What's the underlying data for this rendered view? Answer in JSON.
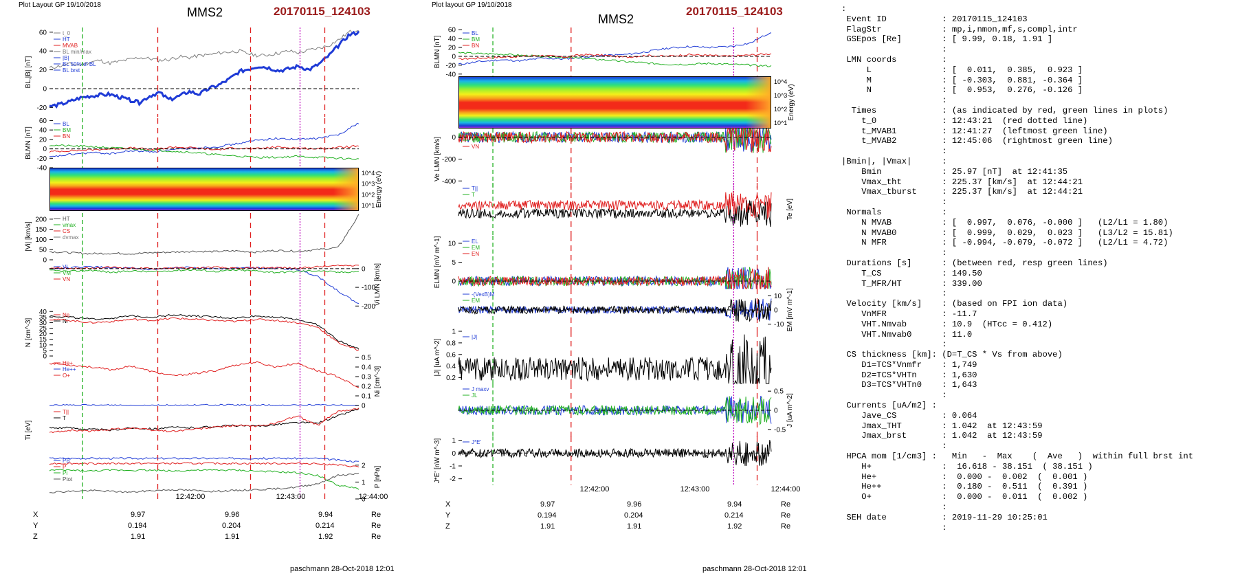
{
  "header": {
    "left_label": "Plot Layout GP 19/10/2018",
    "right_label": "Plot layout GP 19/10/2018",
    "spacecraft": "MMS2",
    "event_id": "20170115_124103"
  },
  "footer": {
    "left": "paschmann 28-Oct-2018 12:01",
    "right": "paschmann 28-Oct-2018 12:01"
  },
  "time_axis": {
    "ticks": [
      "12:42:00",
      "12:43:00",
      "12:44:00"
    ],
    "coords": {
      "X": [
        "9.97",
        "9.96",
        "9.94"
      ],
      "Y": [
        "0.194",
        "0.204",
        "0.214"
      ],
      "Z": [
        "1.91",
        "1.91",
        "1.92"
      ]
    },
    "unit": "Re"
  },
  "chart_data": [
    {
      "type": "line",
      "panel": "left-1",
      "ylabel": "BL,|B| [nT]",
      "ylim": [
        -30,
        65
      ],
      "yticks": [
        -20,
        0,
        20,
        40,
        60
      ],
      "legend": [
        "t_0",
        "HT",
        "MVAB",
        "BL min/max",
        "|B|",
        "BL 50% of BL",
        "BL brst"
      ],
      "series": [
        {
          "name": "|B|",
          "color": "#7f7f7f",
          "values": [
            22,
            24,
            26,
            25,
            28,
            30,
            27,
            29,
            31,
            33,
            32,
            30,
            31,
            34,
            33,
            35,
            36,
            38,
            39,
            40,
            37,
            35,
            36,
            38,
            40,
            38,
            41,
            43,
            46,
            52,
            60,
            63
          ]
        },
        {
          "name": "BL",
          "color": "#1f3bd6",
          "values": [
            -19,
            -17,
            -14,
            -10,
            -8,
            -7,
            -6,
            -9,
            -12,
            -15,
            -8,
            -4,
            -12,
            -8,
            -3,
            -6,
            0,
            4,
            10,
            18,
            21,
            24,
            22,
            19,
            21,
            24,
            20,
            26,
            35,
            46,
            57,
            60
          ]
        }
      ]
    },
    {
      "type": "line",
      "panel": "left-2",
      "ylabel": "BLMN [nT]",
      "ylim": [
        -40,
        65
      ],
      "yticks": [
        -40,
        -20,
        0,
        20,
        40,
        60
      ],
      "legend": [
        "BL",
        "BM",
        "BN"
      ],
      "series": [
        {
          "name": "BL",
          "color": "#1f3bd6",
          "values": [
            -18,
            -12,
            -8,
            -10,
            -4,
            -6,
            -2,
            2,
            4,
            10,
            18,
            22,
            20,
            22,
            30,
            55
          ]
        },
        {
          "name": "BM",
          "color": "#22b022",
          "values": [
            8,
            6,
            5,
            2,
            0,
            -2,
            -5,
            -8,
            -12,
            -15,
            -18,
            -18,
            -16,
            -18,
            -20,
            -22
          ]
        },
        {
          "name": "BN",
          "color": "#e02020",
          "values": [
            -6,
            -4,
            -2,
            0,
            2,
            -2,
            4,
            2,
            -2,
            2,
            0,
            4,
            2,
            0,
            3,
            6
          ]
        }
      ]
    },
    {
      "type": "heatmap",
      "panel": "left-3",
      "ylabel": "Energy (eV)",
      "yticks": [
        "10^1",
        "10^2",
        "10^3",
        "10^4"
      ]
    },
    {
      "type": "line",
      "panel": "left-4",
      "ylabel": "|Vi| [km/s]",
      "ylim": [
        0,
        230
      ],
      "yticks": [
        0,
        50,
        100,
        150,
        200
      ],
      "legend": [
        "HT",
        "vmax",
        "CS",
        "dvmax"
      ],
      "series": [
        {
          "name": "|Vi|",
          "color": "#555555",
          "values": [
            40,
            35,
            30,
            32,
            30,
            35,
            38,
            42,
            40,
            44,
            38,
            46,
            42,
            50,
            60,
            220
          ]
        }
      ]
    },
    {
      "type": "line",
      "panel": "left-5",
      "ylabel": "Vi LMN [km/s]",
      "ylim": [
        -210,
        40
      ],
      "yticks": [
        0,
        -100,
        -200
      ],
      "legend": [
        "VL",
        "VM",
        "VN"
      ],
      "series": [
        {
          "name": "VL",
          "color": "#1f3bd6",
          "values": [
            0,
            5,
            10,
            4,
            0,
            -5,
            2,
            8,
            0,
            4,
            6,
            2,
            -4,
            -40,
            -120,
            -190
          ]
        },
        {
          "name": "VM",
          "color": "#22b022",
          "values": [
            -10,
            -15,
            -8,
            -20,
            -12,
            -18,
            -10,
            -5,
            -15,
            -8,
            -12,
            -20,
            -15,
            -10,
            -20,
            -15
          ]
        },
        {
          "name": "VN",
          "color": "#e02020",
          "values": [
            5,
            2,
            0,
            8,
            3,
            0,
            5,
            2,
            8,
            0,
            4,
            6,
            2,
            10,
            15,
            20
          ]
        }
      ]
    },
    {
      "type": "line",
      "panel": "left-6",
      "ylabel": "N [cm^-3]",
      "ylim": [
        0,
        42
      ],
      "yticks": [
        0,
        5,
        10,
        15,
        20,
        25,
        30,
        35,
        40
      ],
      "legend": [
        "Ne",
        "Ni"
      ],
      "series": [
        {
          "name": "Ne",
          "color": "#e02020",
          "values": [
            33,
            32,
            30,
            31,
            33,
            32,
            34,
            33,
            32,
            31,
            33,
            32,
            30,
            26,
            12,
            5
          ]
        },
        {
          "name": "Ni",
          "color": "#000000",
          "values": [
            36,
            35,
            33,
            34,
            36,
            35,
            37,
            36,
            35,
            34,
            36,
            35,
            33,
            28,
            14,
            6
          ]
        }
      ]
    },
    {
      "type": "line",
      "panel": "left-7",
      "ylabel": "Ni [cm^-3]",
      "ylim": [
        0,
        0.5
      ],
      "yticks": [
        0,
        0.1,
        0.2,
        0.3,
        0.4,
        0.5
      ],
      "legend": [
        "He+",
        "He++",
        "O+"
      ],
      "series": [
        {
          "name": "He++",
          "color": "#e02020",
          "values": [
            0.44,
            0.42,
            0.4,
            0.37,
            0.41,
            0.35,
            0.31,
            0.33,
            0.36,
            0.42,
            0.45,
            0.4,
            0.44,
            0.36,
            0.3,
            0.18
          ]
        },
        {
          "name": "O+",
          "color": "#1f3bd6",
          "values": [
            0.002,
            0.003,
            0.001,
            0.004,
            0.002,
            0.003,
            0.001,
            0.002,
            0.004,
            0.002,
            0.003,
            0.001,
            0.002,
            0.003,
            0.002,
            0.001
          ]
        }
      ]
    },
    {
      "type": "line",
      "panel": "left-8",
      "ylabel": "Ti [eV]",
      "legend": [
        "T||",
        "T"
      ],
      "series": [
        {
          "name": "T||",
          "color": "#e02020",
          "values": [
            0.45,
            0.5,
            0.48,
            0.52,
            0.55,
            0.5,
            0.48,
            0.52,
            0.56,
            0.6,
            0.58,
            0.65,
            0.8,
            0.6,
            0.9,
            0.95
          ]
        },
        {
          "name": "T",
          "color": "#000000",
          "values": [
            0.55,
            0.55,
            0.52,
            0.5,
            0.55,
            0.53,
            0.56,
            0.55,
            0.58,
            0.6,
            0.58,
            0.62,
            0.66,
            0.65,
            0.8,
            0.95
          ]
        }
      ]
    },
    {
      "type": "line",
      "panel": "left-9",
      "ylabel": "P [nPa]",
      "ylim": [
        0,
        2.6
      ],
      "yticks": [
        0,
        1,
        2
      ],
      "legend": [
        "PB",
        "P",
        "Pi",
        "Ptot"
      ],
      "series": [
        {
          "name": "PB",
          "color": "#1f3bd6",
          "values": [
            2.4,
            2.4,
            2.4,
            2.4,
            2.4,
            2.4,
            2.4,
            2.4,
            2.4,
            2.4,
            2.4,
            2.4,
            2.4,
            2.4,
            2.3,
            2.2
          ]
        },
        {
          "name": "P",
          "color": "#e02020",
          "values": [
            2.1,
            2.1,
            2.1,
            2.1,
            2.1,
            2.1,
            2.1,
            2.1,
            2.1,
            2.1,
            2.1,
            2.1,
            2.1,
            2.1,
            2.0,
            1.9
          ]
        },
        {
          "name": "Pi",
          "color": "#22b022",
          "values": [
            1.7,
            1.7,
            1.65,
            1.7,
            1.7,
            1.7,
            1.65,
            1.7,
            1.7,
            1.7,
            1.65,
            1.6,
            1.55,
            1.4,
            0.8,
            0.6
          ]
        },
        {
          "name": "Ptot",
          "color": "#555555",
          "values": [
            0.4,
            0.45,
            0.5,
            0.45,
            0.4,
            0.5,
            0.55,
            0.5,
            0.45,
            0.5,
            0.55,
            0.6,
            0.7,
            0.9,
            1.4,
            1.5
          ]
        }
      ]
    },
    {
      "type": "line",
      "panel": "right-1",
      "ylabel": "BLMN [nT]",
      "ylim": [
        -45,
        65
      ],
      "yticks": [
        -40,
        -20,
        0,
        20,
        40,
        60
      ],
      "legend": [
        "BL",
        "BM",
        "BN"
      ],
      "series": [
        {
          "name": "BL",
          "color": "#1f3bd6",
          "values": [
            -18,
            -12,
            -8,
            -10,
            -4,
            -6,
            -2,
            2,
            4,
            10,
            18,
            22,
            20,
            22,
            30,
            55
          ]
        },
        {
          "name": "BM",
          "color": "#22b022",
          "values": [
            8,
            6,
            5,
            2,
            0,
            -2,
            -5,
            -8,
            -12,
            -15,
            -18,
            -18,
            -16,
            -18,
            -20,
            -22
          ]
        },
        {
          "name": "BN",
          "color": "#e02020",
          "values": [
            -6,
            -4,
            -2,
            0,
            2,
            -2,
            4,
            2,
            -2,
            2,
            0,
            4,
            2,
            0,
            3,
            6
          ]
        }
      ]
    },
    {
      "type": "heatmap",
      "panel": "right-2",
      "ylabel": "Energy (eV)",
      "yticks": [
        "10^1",
        "10^2",
        "10^3",
        "10^4"
      ]
    },
    {
      "type": "line",
      "panel": "right-3",
      "ylabel": "Ve LMN [km/s]",
      "ylim": [
        -480,
        80
      ],
      "yticks": [
        0,
        -200,
        -400
      ],
      "legend": [
        "VL",
        "VM",
        "VN"
      ]
    },
    {
      "type": "line",
      "panel": "right-4",
      "ylabel": "Te [eV]",
      "legend": [
        "T||",
        "T"
      ]
    },
    {
      "type": "line",
      "panel": "right-5",
      "ylabel": "ELMN [mV m^-1]",
      "ylim": [
        -2,
        12
      ],
      "yticks": [
        0,
        5,
        10
      ],
      "legend": [
        "EL",
        "EM",
        "EN"
      ]
    },
    {
      "type": "line",
      "panel": "right-6",
      "ylabel": "EM [mV m^-1]",
      "ylim": [
        -15,
        15
      ],
      "yticks": [
        10,
        0,
        -10
      ],
      "legend": [
        "-(VexB)M",
        "EM"
      ]
    },
    {
      "type": "line",
      "panel": "right-7",
      "ylabel": "|J| [uA m^-2]",
      "ylim": [
        0.1,
        1.0
      ],
      "yticks": [
        0.2,
        0.4,
        0.6,
        0.8,
        1.0
      ],
      "legend": [
        "|J|"
      ]
    },
    {
      "type": "line",
      "panel": "right-8",
      "ylabel": "J [uA m^-2]",
      "ylim": [
        -0.7,
        0.7
      ],
      "yticks": [
        0.5,
        0,
        -0.5
      ],
      "legend": [
        "J maxv",
        "JL"
      ]
    },
    {
      "type": "line",
      "panel": "right-9",
      "ylabel": "J*E' [nW m^-3]",
      "ylim": [
        -2.5,
        1.3
      ],
      "yticks": [
        1,
        0,
        -1,
        -2
      ],
      "legend": [
        "J*E'"
      ]
    }
  ],
  "info": {
    "lines": [
      ":",
      " Event ID           : 20170115_124103",
      " FlagStr            : mp,i,nmon,mf,s,compl,intr",
      " GSEpos [Re]        : [ 9.99, 0.18, 1.91 ]",
      "                    :",
      " LMN coords         :",
      "     L              : [  0.011,  0.385,  0.923 ]",
      "     M              : [ -0.303,  0.881, -0.364 ]",
      "     N              : [  0.953,  0.276, -0.126 ]",
      "                    :",
      "  Times             : (as indicated by red, green lines in plots)",
      "    t_0             : 12:43:21  (red dotted line)",
      "    t_MVAB1         : 12:41:27  (leftmost green line)",
      "    t_MVAB2         : 12:45:06  (rightmost green line)",
      "                    :",
      "|Bmin|, |Vmax|      :",
      "    Bmin            : 25.97 [nT]  at 12:41:35",
      "    Vmax_tht        : 225.37 [km/s]  at 12:44:21",
      "    Vmax_tburst     : 225.37 [km/s]  at 12:44:21",
      "                    :",
      " Normals            :",
      "    N MVAB          : [  0.997,  0.076, -0.000 ]   (L2/L1 = 1.80)",
      "    N MVAB0         : [  0.999,  0.029,  0.023 ]   (L3/L2 = 15.81)",
      "    N MFR           : [ -0.994, -0.079, -0.072 ]   (L2/L1 = 4.72)",
      "                    :",
      " Durations [s]      : (between red, resp green lines)",
      "    T_CS            : 149.50",
      "    T_MFR/HT        : 339.00",
      "                    :",
      " Velocity [km/s]    : (based on FPI ion data)",
      "    VnMFR           : -11.7",
      "    VHT.Nmvab       : 10.9  (HTcc = 0.412)",
      "    VHT.Nmvab0      : 11.0",
      "                    :",
      " CS thickness [km]: (D=T_CS * Vs from above)",
      "    D1=TCS*Vnmfr    : 1,749",
      "    D2=TCS*VHTn     : 1,630",
      "    D3=TCS*VHTn0    : 1,643",
      "                    :",
      " Currents [uA/m2] :",
      "    Jave_CS         : 0.064",
      "    Jmax_THT        : 1.042  at 12:43:59",
      "    Jmax_brst       : 1.042  at 12:43:59",
      "                    :",
      " HPCA mom [1/cm3] :   Min   -  Max    (  Ave   )  within full brst int",
      "    H+              :  16.618 - 38.151  ( 38.151 )",
      "    He+             :  0.000 -  0.002  (  0.001 )",
      "    He++            :  0.180 -  0.511  (  0.391 )",
      "    O+              :  0.000 -  0.011  (  0.002 )",
      "                    :",
      " SEH date           : 2019-11-29 10:25:01",
      "                    :"
    ]
  }
}
